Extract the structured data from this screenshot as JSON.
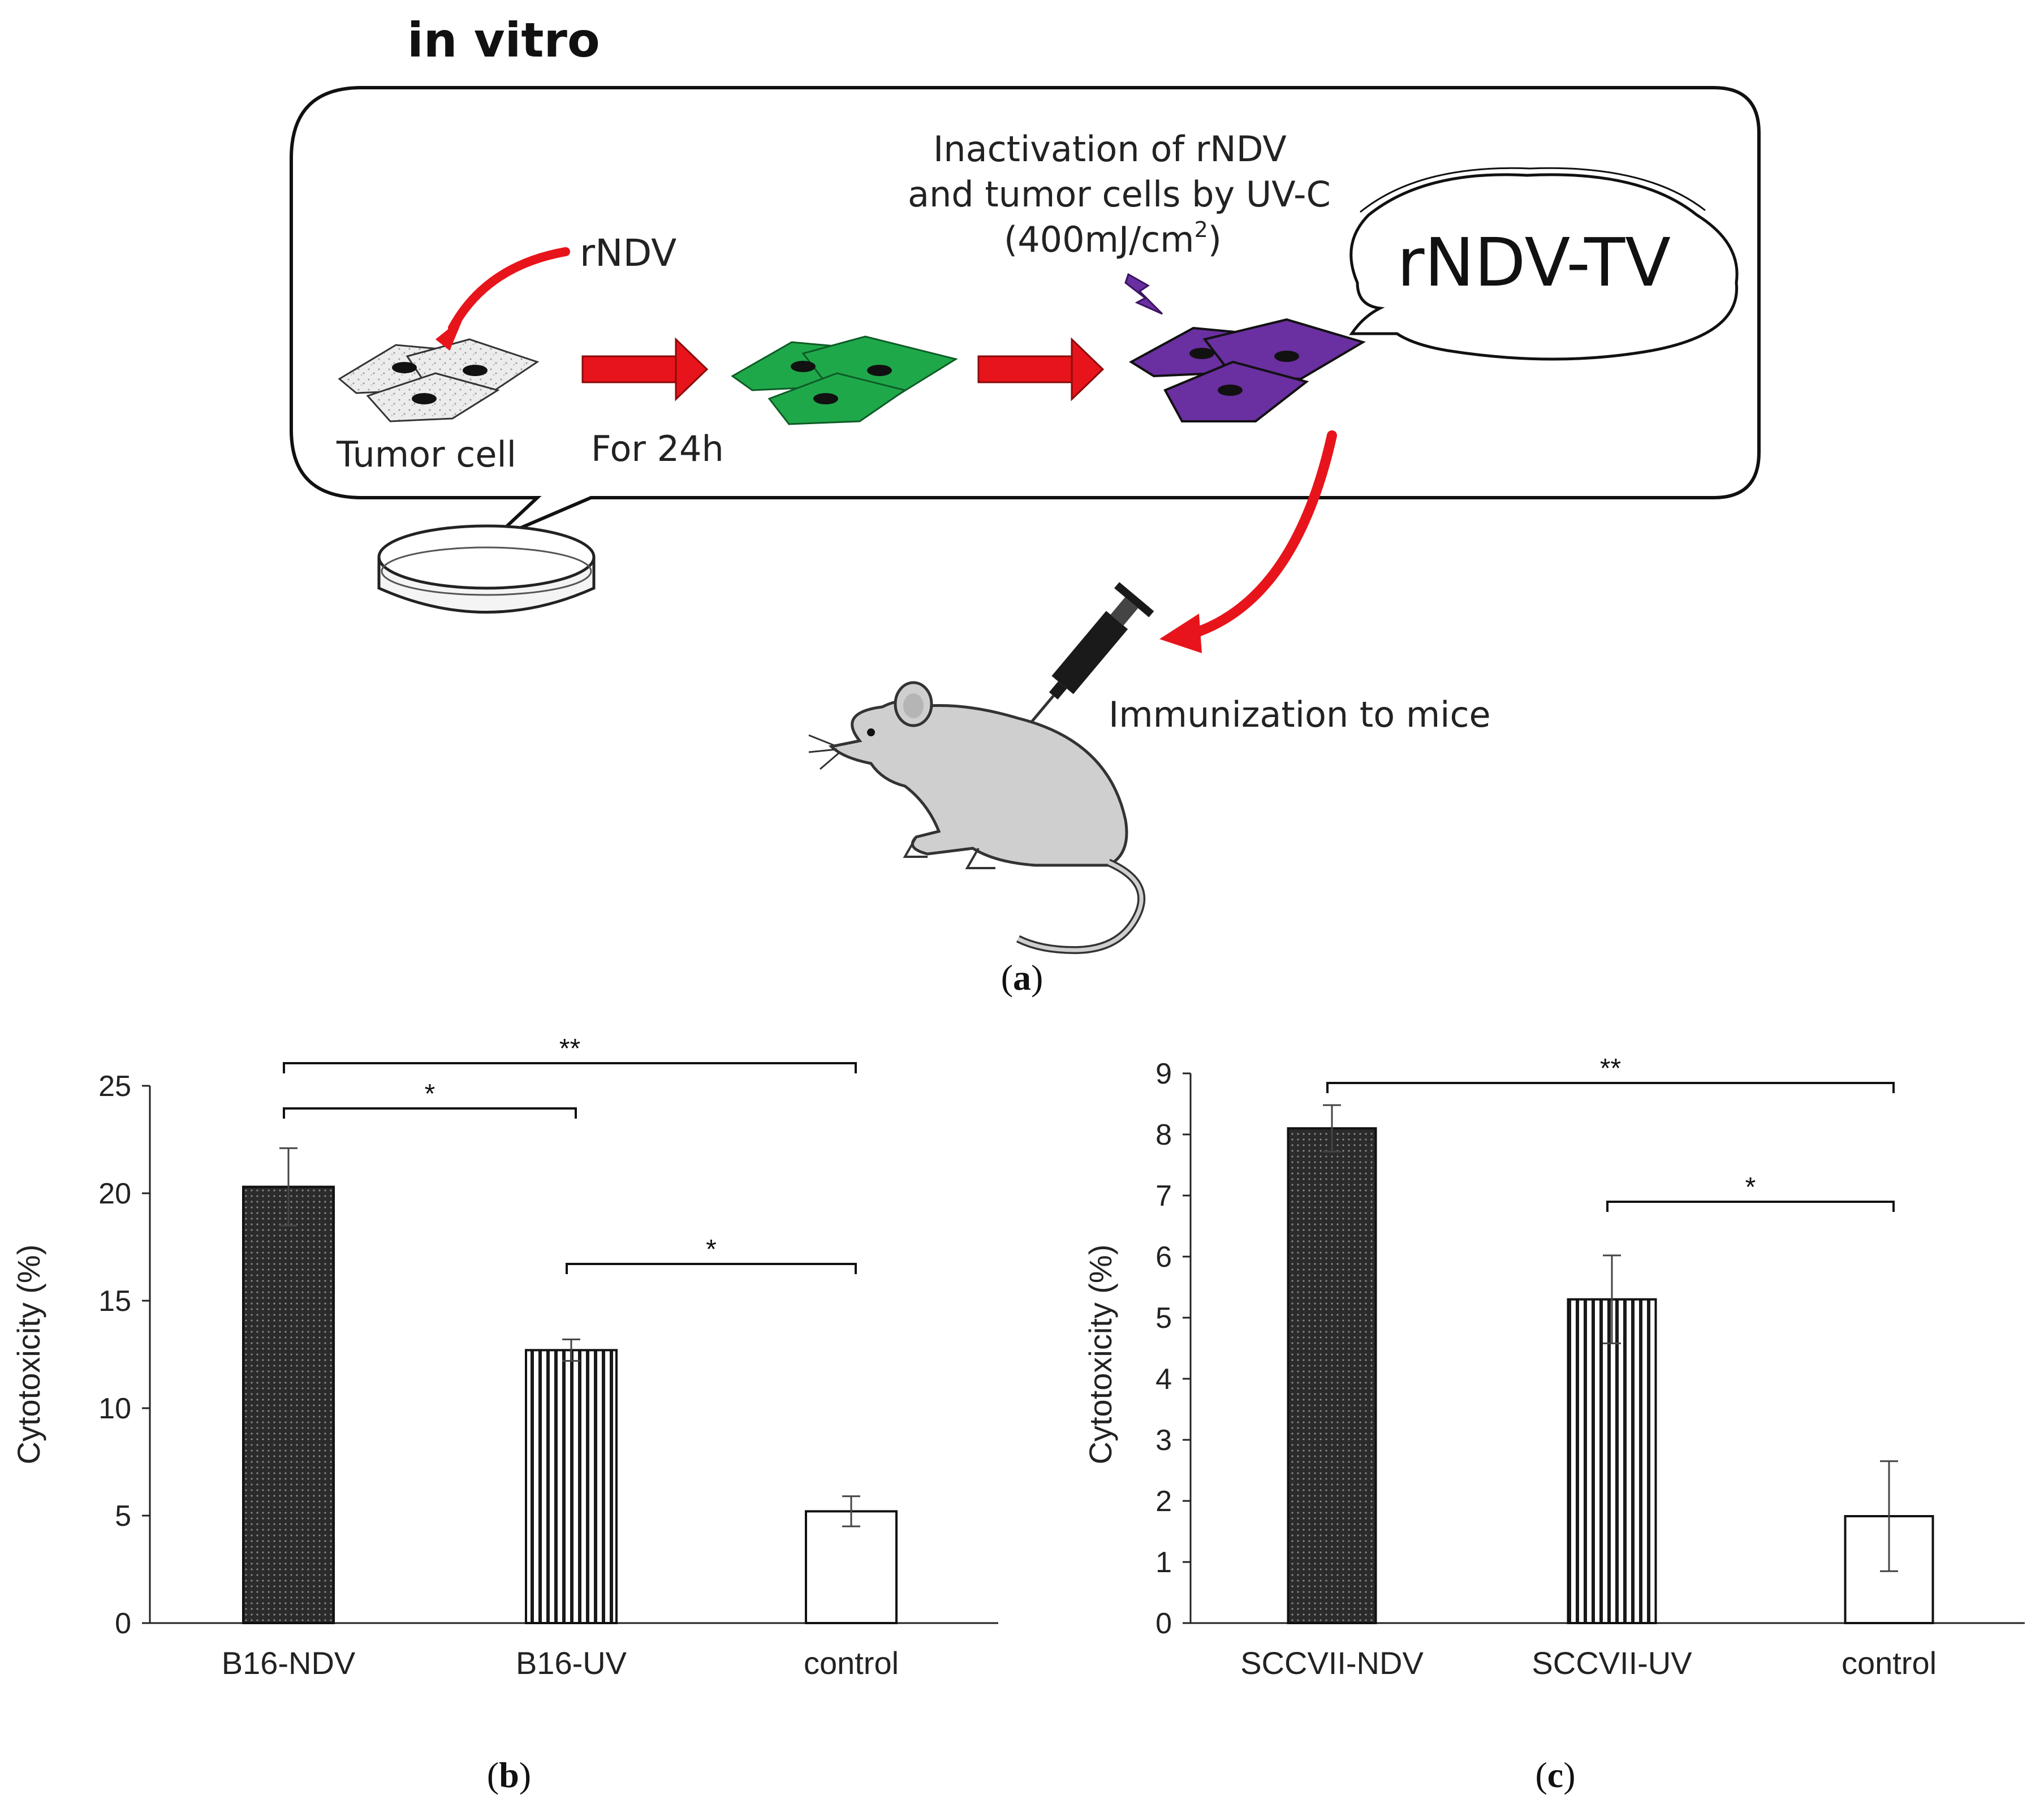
{
  "panel_a": {
    "header": "in vitro",
    "labels": {
      "rndv": "rNDV",
      "tumor_cell": "Tumor cell",
      "for_24h": "For 24h",
      "inactivation_line1": "Inactivation of rNDV",
      "inactivation_line2": "and tumor cells by UV-C",
      "dose_prefix": "(400mJ/cm",
      "dose_sup": "2",
      "dose_suffix": ")",
      "bubble": "rNDV-TV",
      "immunization": "Immunization to mice"
    },
    "caption_letter": "a",
    "colors": {
      "arrow": "#e8141b",
      "infected": "#1fa84a",
      "inactivated": "#6a2fa0",
      "lightning": "#6a2fa0",
      "mouse": "#cfcfcf"
    }
  },
  "chart_data": [
    {
      "type": "bar",
      "panel": "b",
      "caption_letter": "b",
      "categories": [
        "B16-NDV",
        "B16-UV",
        "control"
      ],
      "values": [
        20.3,
        12.7,
        5.2
      ],
      "errors": [
        1.8,
        0.5,
        0.7
      ],
      "patterns": [
        "dotted-dark",
        "vertical-lines",
        "none"
      ],
      "ylabel": "Cytotoxicity (%)",
      "ylim": [
        0,
        25
      ],
      "yticks": [
        0,
        5,
        10,
        15,
        20,
        25
      ],
      "significance": [
        {
          "from": 0,
          "to": 1,
          "label": "*",
          "level": 1
        },
        {
          "from": 0,
          "to": 2,
          "label": "**",
          "level": 2
        },
        {
          "from": 1,
          "to": 2,
          "label": "*",
          "level": 0
        }
      ]
    },
    {
      "type": "bar",
      "panel": "c",
      "caption_letter": "c",
      "categories": [
        "SCCVII-NDV",
        "SCCVII-UV",
        "control"
      ],
      "values": [
        8.1,
        5.3,
        1.75
      ],
      "errors": [
        0.38,
        0.72,
        0.9
      ],
      "patterns": [
        "dotted-dark",
        "vertical-lines",
        "none"
      ],
      "ylabel": "Cytotoxicity (%)",
      "ylim": [
        0,
        9
      ],
      "yticks": [
        0,
        1,
        2,
        3,
        4,
        5,
        6,
        7,
        8,
        9
      ],
      "significance": [
        {
          "from": 0,
          "to": 2,
          "label": "**",
          "level": 2
        },
        {
          "from": 1,
          "to": 2,
          "label": "*",
          "level": 1
        }
      ]
    }
  ]
}
